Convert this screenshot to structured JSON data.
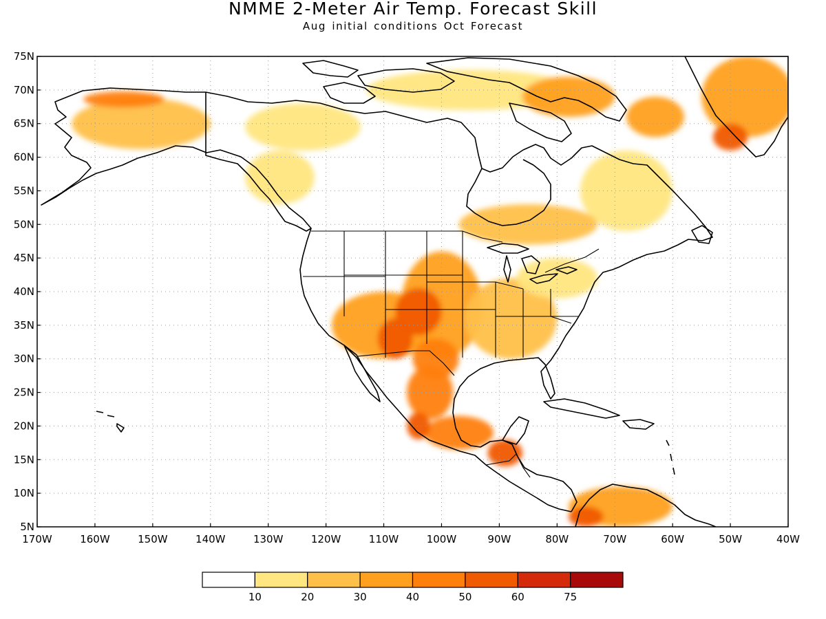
{
  "title": "NMME 2-Meter Air Temp. Forecast Skill",
  "subtitle": "Aug initial conditions  Oct Forecast",
  "map": {
    "lon_range": [
      -170,
      -40
    ],
    "lat_range": [
      5,
      75
    ],
    "lat_ticks": [
      "75N",
      "70N",
      "65N",
      "60N",
      "55N",
      "50N",
      "45N",
      "40N",
      "35N",
      "30N",
      "25N",
      "20N",
      "15N",
      "10N",
      "5N"
    ],
    "lon_ticks": [
      "170W",
      "160W",
      "150W",
      "140W",
      "130W",
      "120W",
      "110W",
      "100W",
      "90W",
      "80W",
      "70W",
      "60W",
      "50W",
      "40W"
    ],
    "grid": true,
    "coast_color": "#000000"
  },
  "colorbar": {
    "labels": [
      "10",
      "20",
      "30",
      "40",
      "50",
      "60",
      "75"
    ],
    "colors": [
      "#ffffff",
      "#ffe680",
      "#ffc04a",
      "#ffa01e",
      "#ff7f0c",
      "#f05a00",
      "#d42a0a",
      "#a80a0a"
    ]
  },
  "skill_regions": [
    {
      "name": "alaska",
      "lon": -152,
      "lat": 65,
      "rx": 12,
      "ry": 3.8,
      "level": 2
    },
    {
      "name": "alaska-north",
      "lon": -155,
      "lat": 68.6,
      "rx": 7,
      "ry": 1.2,
      "level": 4
    },
    {
      "name": "yukon",
      "lon": -124,
      "lat": 64.5,
      "rx": 10,
      "ry": 3.5,
      "level": 1
    },
    {
      "name": "bc",
      "lon": -128,
      "lat": 57,
      "rx": 6,
      "ry": 4,
      "level": 1
    },
    {
      "name": "arctic-islands",
      "lon": -95,
      "lat": 70,
      "rx": 18,
      "ry": 3,
      "level": 1
    },
    {
      "name": "baffin",
      "lon": -78,
      "lat": 69,
      "rx": 8,
      "ry": 3,
      "level": 3
    },
    {
      "name": "labrador",
      "lon": -68,
      "lat": 55,
      "rx": 8,
      "ry": 6,
      "level": 1
    },
    {
      "name": "quebec",
      "lon": -85,
      "lat": 50,
      "rx": 12,
      "ry": 3,
      "level": 2
    },
    {
      "name": "west-greenland",
      "lon": -63,
      "lat": 66,
      "rx": 5,
      "ry": 3,
      "level": 3
    },
    {
      "name": "greenland",
      "lon": -47,
      "lat": 69,
      "rx": 8,
      "ry": 6,
      "level": 3
    },
    {
      "name": "greenland-south",
      "lon": -50,
      "lat": 63,
      "rx": 3,
      "ry": 2,
      "level": 5
    },
    {
      "name": "us-southwest",
      "lon": -110,
      "lat": 35,
      "rx": 9,
      "ry": 5,
      "level": 3
    },
    {
      "name": "us-south-central",
      "lon": -100,
      "lat": 38,
      "rx": 7,
      "ry": 8,
      "level": 3
    },
    {
      "name": "colorado",
      "lon": -104,
      "lat": 37,
      "rx": 4,
      "ry": 3.5,
      "level": 5
    },
    {
      "name": "new-mexico",
      "lon": -108,
      "lat": 33,
      "rx": 3,
      "ry": 3,
      "level": 5
    },
    {
      "name": "texas",
      "lon": -101,
      "lat": 30,
      "rx": 4,
      "ry": 3,
      "level": 4
    },
    {
      "name": "southeast-us",
      "lon": -88,
      "lat": 36,
      "rx": 8,
      "ry": 6,
      "level": 2
    },
    {
      "name": "great-lakes",
      "lon": -80,
      "lat": 42,
      "rx": 7,
      "ry": 3,
      "level": 1
    },
    {
      "name": "mexico",
      "lon": -102,
      "lat": 25,
      "rx": 4,
      "ry": 4,
      "level": 4
    },
    {
      "name": "mexico-south",
      "lon": -97,
      "lat": 19,
      "rx": 6,
      "ry": 2.5,
      "level": 4
    },
    {
      "name": "mexico-west",
      "lon": -104,
      "lat": 20,
      "rx": 2,
      "ry": 2,
      "level": 5
    },
    {
      "name": "central-america",
      "lon": -89,
      "lat": 16,
      "rx": 3,
      "ry": 2,
      "level": 5
    },
    {
      "name": "south-america",
      "lon": -69,
      "lat": 8,
      "rx": 9,
      "ry": 3,
      "level": 3
    },
    {
      "name": "venezuela-coast",
      "lon": -75,
      "lat": 6.5,
      "rx": 3,
      "ry": 1.5,
      "level": 5
    }
  ]
}
